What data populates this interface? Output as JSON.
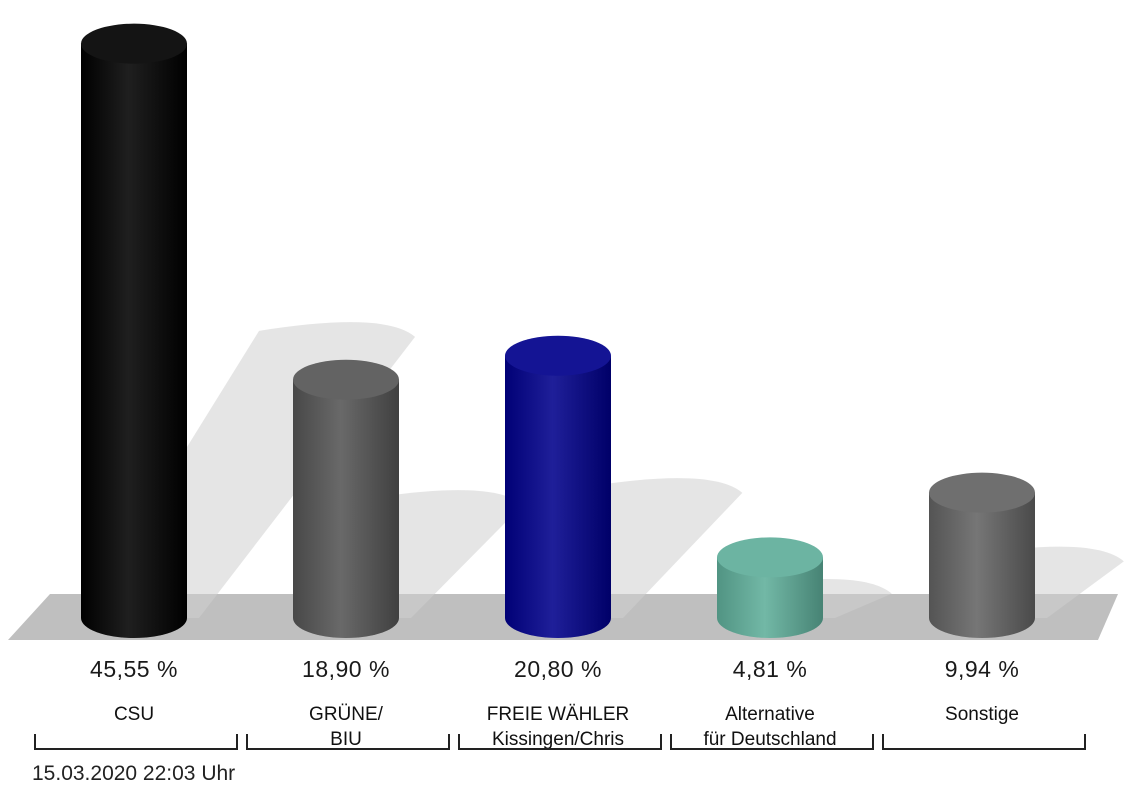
{
  "chart_data": {
    "type": "bar",
    "categories": [
      "CSU",
      "GRÜNE/\nBIU",
      "FREIE WÄHLER\nKissingen/Chris",
      "Alternative\nfür Deutschland",
      "Sonstige"
    ],
    "values": [
      45.55,
      18.9,
      20.8,
      4.81,
      9.94
    ],
    "value_labels": [
      "45,55 %",
      "18,90 %",
      "20,80 %",
      "4,81 %",
      "9,94 %"
    ],
    "colors": [
      "#000000",
      "#555555",
      "#00008b",
      "#5fae9a",
      "#636363"
    ],
    "title": "",
    "xlabel": "",
    "ylabel": "",
    "ylim": [
      0,
      46
    ]
  },
  "footer": {
    "timestamp": "15.03.2020 22:03 Uhr"
  }
}
